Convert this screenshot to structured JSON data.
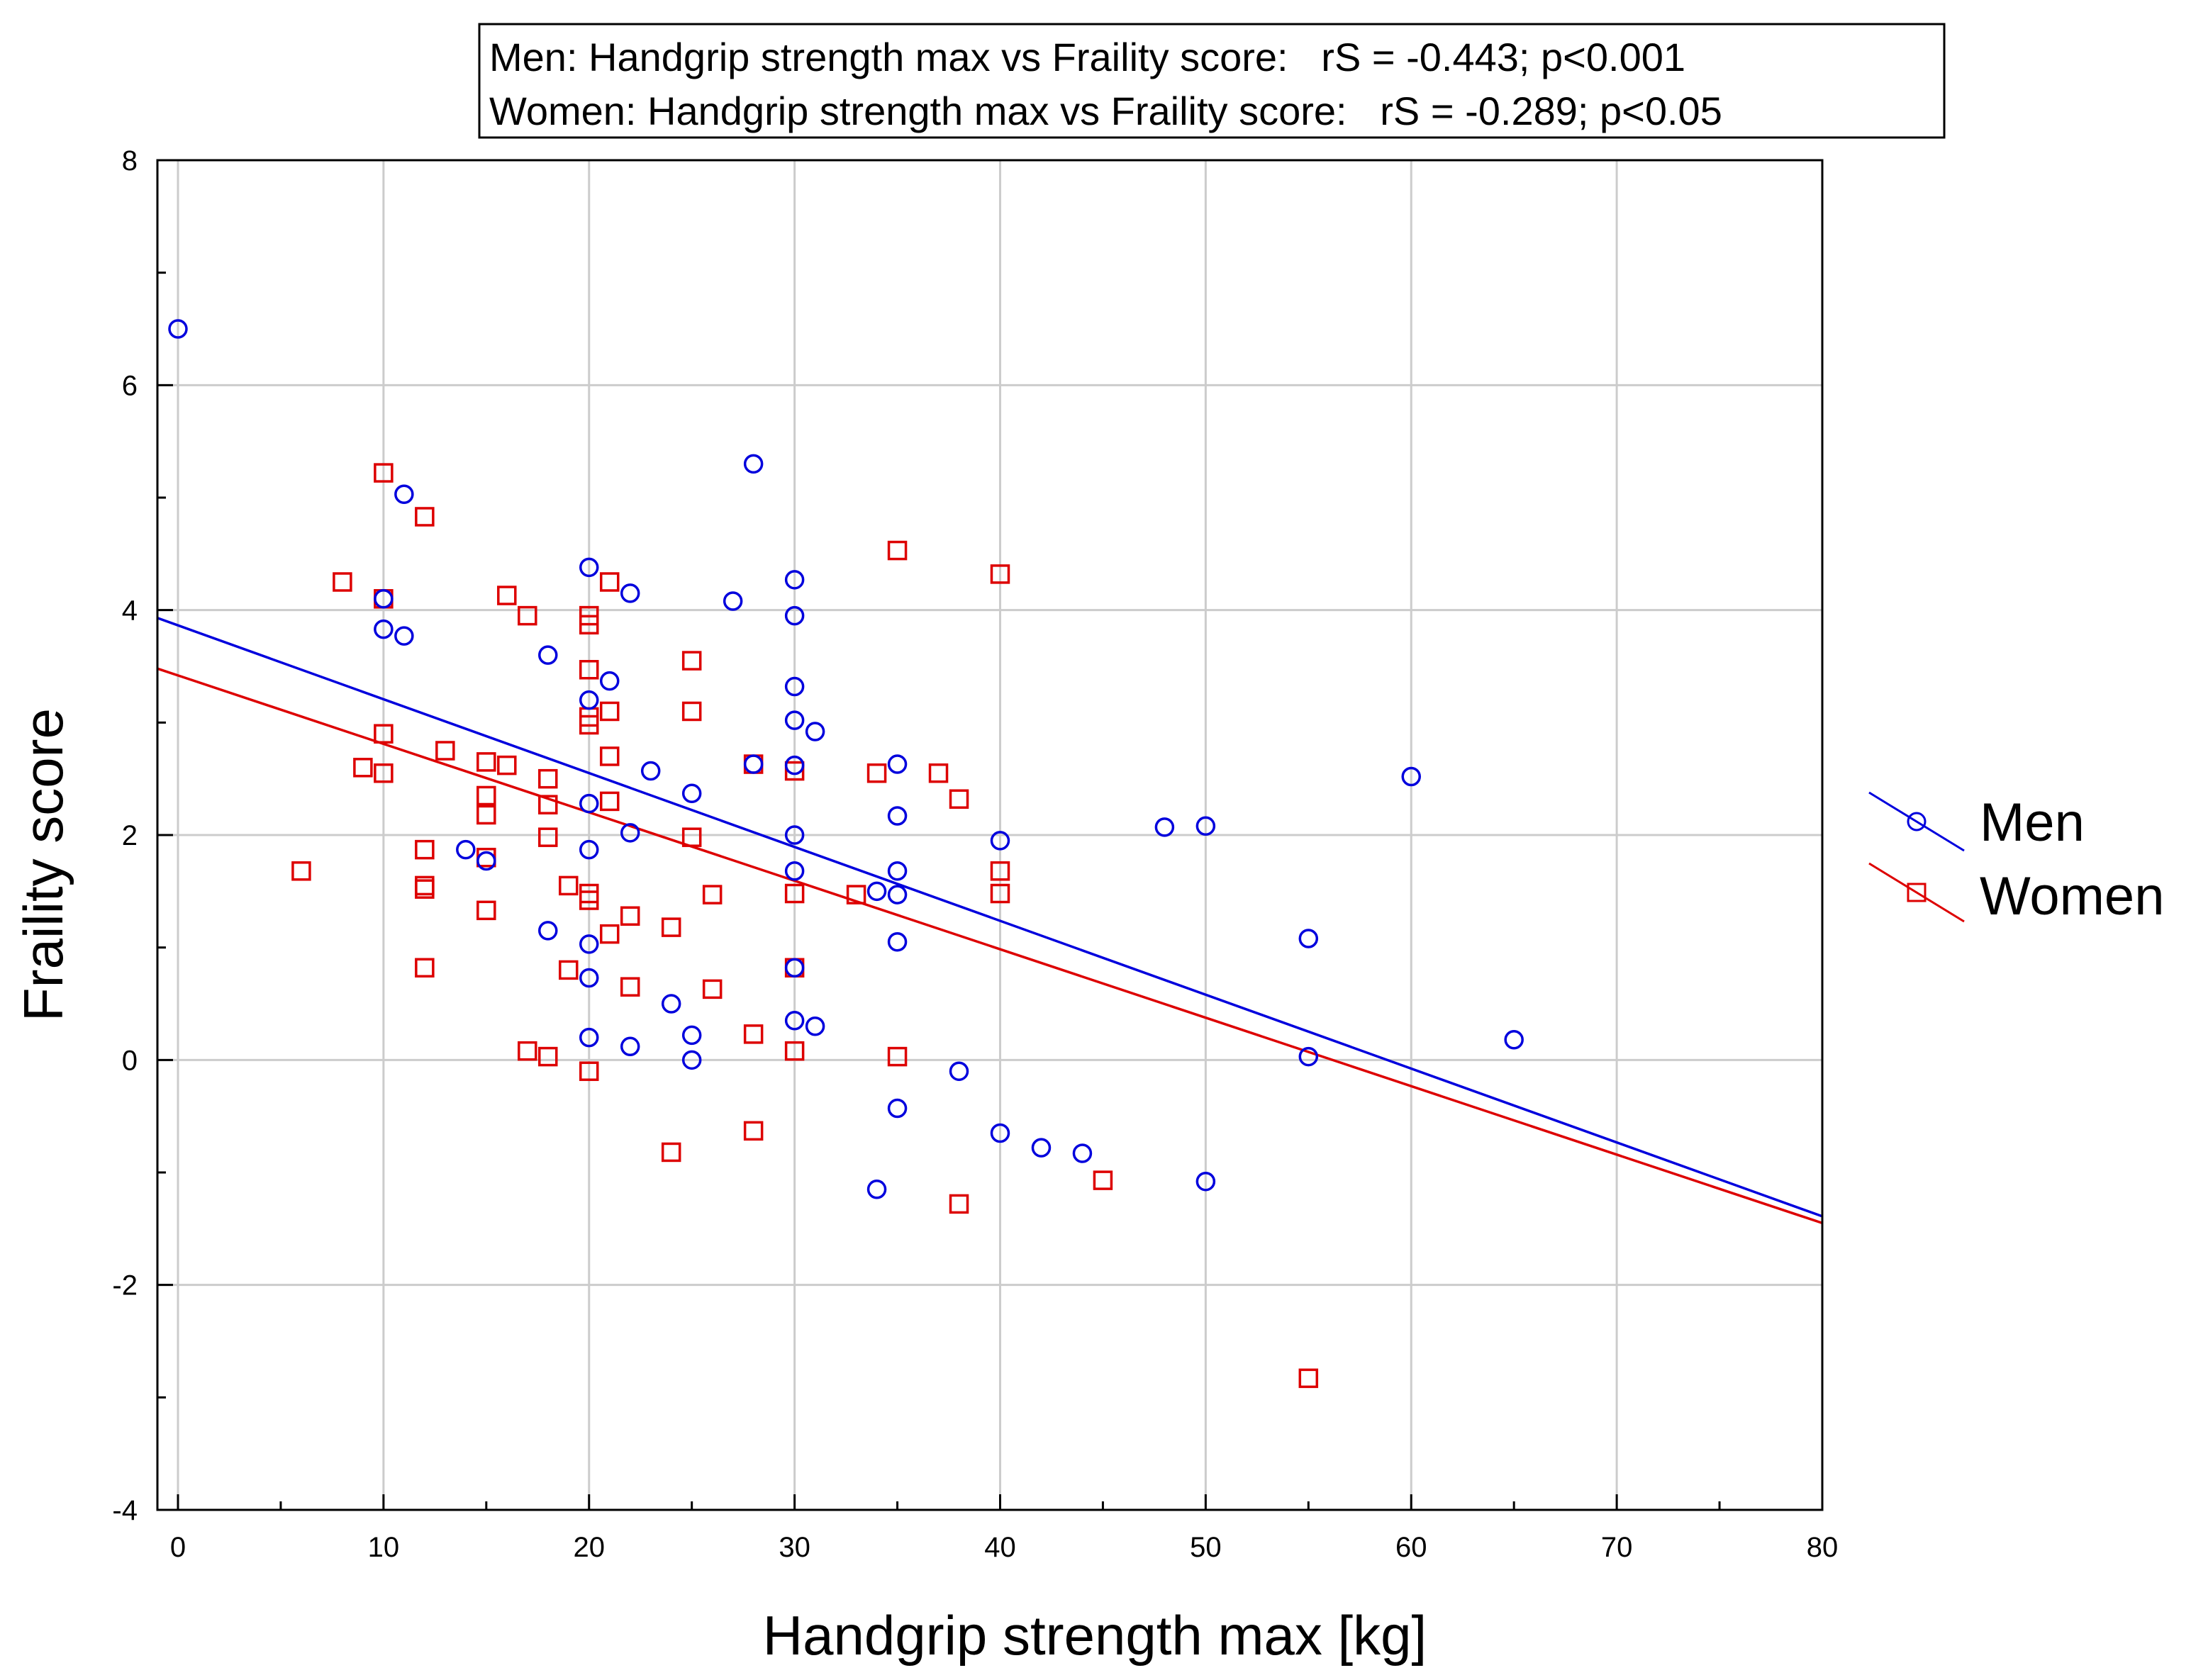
{
  "chart_data": {
    "type": "scatter",
    "xlabel": "Handgrip strength max [kg]",
    "ylabel": "Fraility score",
    "xlim": [
      -1,
      80
    ],
    "ylim": [
      -4,
      8
    ],
    "xticks": [
      0,
      10,
      20,
      30,
      40,
      50,
      60,
      70,
      80
    ],
    "yticks": [
      -4,
      -2,
      0,
      2,
      4,
      6,
      8
    ],
    "xtick_labels": [
      "0",
      "10",
      "20",
      "30",
      "40",
      "50",
      "60",
      "70",
      "80"
    ],
    "ytick_labels": [
      "-4",
      "-2",
      "0",
      "2",
      "4",
      "6",
      "8"
    ],
    "grid": true,
    "legend_position": "right",
    "annotation": [
      "Men: Handgrip strength max vs Fraility score:   rS = -0.443; p<0.001",
      "Women: Handgrip strength max vs Fraility score:   rS = -0.289; p<0.05"
    ],
    "series": [
      {
        "name": "Men",
        "color": "#0000dd",
        "marker": "circle",
        "fit_line": {
          "x": [
            -1,
            80
          ],
          "y": [
            3.93,
            -1.39
          ]
        },
        "points": [
          [
            0,
            6.5
          ],
          [
            10,
            4.1
          ],
          [
            10,
            3.83
          ],
          [
            11,
            5.03
          ],
          [
            11,
            3.77
          ],
          [
            14,
            1.87
          ],
          [
            15,
            1.77
          ],
          [
            18,
            3.6
          ],
          [
            18,
            1.15
          ],
          [
            20,
            4.38
          ],
          [
            20,
            3.2
          ],
          [
            20,
            2.28
          ],
          [
            20,
            1.87
          ],
          [
            20,
            1.03
          ],
          [
            20,
            0.73
          ],
          [
            20,
            0.2
          ],
          [
            21,
            3.37
          ],
          [
            22,
            4.15
          ],
          [
            22,
            2.02
          ],
          [
            22,
            0.12
          ],
          [
            23,
            2.57
          ],
          [
            24,
            0.5
          ],
          [
            25,
            2.37
          ],
          [
            25,
            0.22
          ],
          [
            25,
            0.0
          ],
          [
            27,
            4.08
          ],
          [
            28,
            5.3
          ],
          [
            28,
            2.63
          ],
          [
            30,
            4.27
          ],
          [
            30,
            3.95
          ],
          [
            30,
            3.32
          ],
          [
            30,
            3.02
          ],
          [
            30,
            2.62
          ],
          [
            30,
            2.0
          ],
          [
            30,
            1.68
          ],
          [
            30,
            0.82
          ],
          [
            30,
            0.35
          ],
          [
            31,
            2.92
          ],
          [
            31,
            0.3
          ],
          [
            34,
            1.5
          ],
          [
            34,
            -1.15
          ],
          [
            35,
            2.63
          ],
          [
            35,
            2.17
          ],
          [
            35,
            1.68
          ],
          [
            35,
            1.47
          ],
          [
            35,
            1.05
          ],
          [
            35,
            -0.43
          ],
          [
            38,
            -0.1
          ],
          [
            40,
            1.95
          ],
          [
            40,
            -0.65
          ],
          [
            42,
            -0.78
          ],
          [
            44,
            -0.83
          ],
          [
            48,
            2.07
          ],
          [
            50,
            2.08
          ],
          [
            50,
            -1.08
          ],
          [
            55,
            1.08
          ],
          [
            55,
            0.03
          ],
          [
            60,
            2.52
          ],
          [
            65,
            0.18
          ]
        ]
      },
      {
        "name": "Women",
        "color": "#dd0000",
        "marker": "square",
        "fit_line": {
          "x": [
            -1,
            80
          ],
          "y": [
            3.48,
            -1.45
          ]
        },
        "points": [
          [
            6,
            1.68
          ],
          [
            8,
            4.25
          ],
          [
            9,
            2.6
          ],
          [
            10,
            5.22
          ],
          [
            10,
            4.1
          ],
          [
            10,
            2.9
          ],
          [
            10,
            2.55
          ],
          [
            12,
            4.83
          ],
          [
            12,
            1.87
          ],
          [
            12,
            1.55
          ],
          [
            12,
            1.52
          ],
          [
            12,
            0.82
          ],
          [
            13,
            2.75
          ],
          [
            15,
            2.65
          ],
          [
            15,
            2.35
          ],
          [
            15,
            2.18
          ],
          [
            15,
            1.8
          ],
          [
            15,
            1.33
          ],
          [
            16,
            4.13
          ],
          [
            16,
            2.62
          ],
          [
            17,
            3.95
          ],
          [
            17,
            0.08
          ],
          [
            18,
            2.5
          ],
          [
            18,
            2.27
          ],
          [
            18,
            1.98
          ],
          [
            18,
            0.03
          ],
          [
            19,
            1.55
          ],
          [
            19,
            0.8
          ],
          [
            20,
            3.95
          ],
          [
            20,
            3.87
          ],
          [
            20,
            3.47
          ],
          [
            20,
            3.05
          ],
          [
            20,
            2.98
          ],
          [
            20,
            1.48
          ],
          [
            20,
            1.42
          ],
          [
            20,
            -0.1
          ],
          [
            21,
            4.25
          ],
          [
            21,
            3.1
          ],
          [
            21,
            2.7
          ],
          [
            21,
            2.3
          ],
          [
            21,
            1.12
          ],
          [
            22,
            1.28
          ],
          [
            22,
            0.65
          ],
          [
            24,
            1.18
          ],
          [
            24,
            -0.82
          ],
          [
            25,
            3.55
          ],
          [
            25,
            3.1
          ],
          [
            25,
            1.98
          ],
          [
            26,
            1.47
          ],
          [
            26,
            0.63
          ],
          [
            28,
            2.63
          ],
          [
            28,
            0.23
          ],
          [
            28,
            -0.63
          ],
          [
            30,
            2.57
          ],
          [
            30,
            1.48
          ],
          [
            30,
            0.82
          ],
          [
            30,
            0.08
          ],
          [
            33,
            1.47
          ],
          [
            34,
            2.55
          ],
          [
            35,
            4.53
          ],
          [
            35,
            0.03
          ],
          [
            37,
            2.55
          ],
          [
            38,
            2.32
          ],
          [
            38,
            -1.28
          ],
          [
            40,
            4.32
          ],
          [
            40,
            1.68
          ],
          [
            40,
            1.48
          ],
          [
            45,
            -1.07
          ],
          [
            55,
            -2.83
          ]
        ]
      }
    ]
  }
}
